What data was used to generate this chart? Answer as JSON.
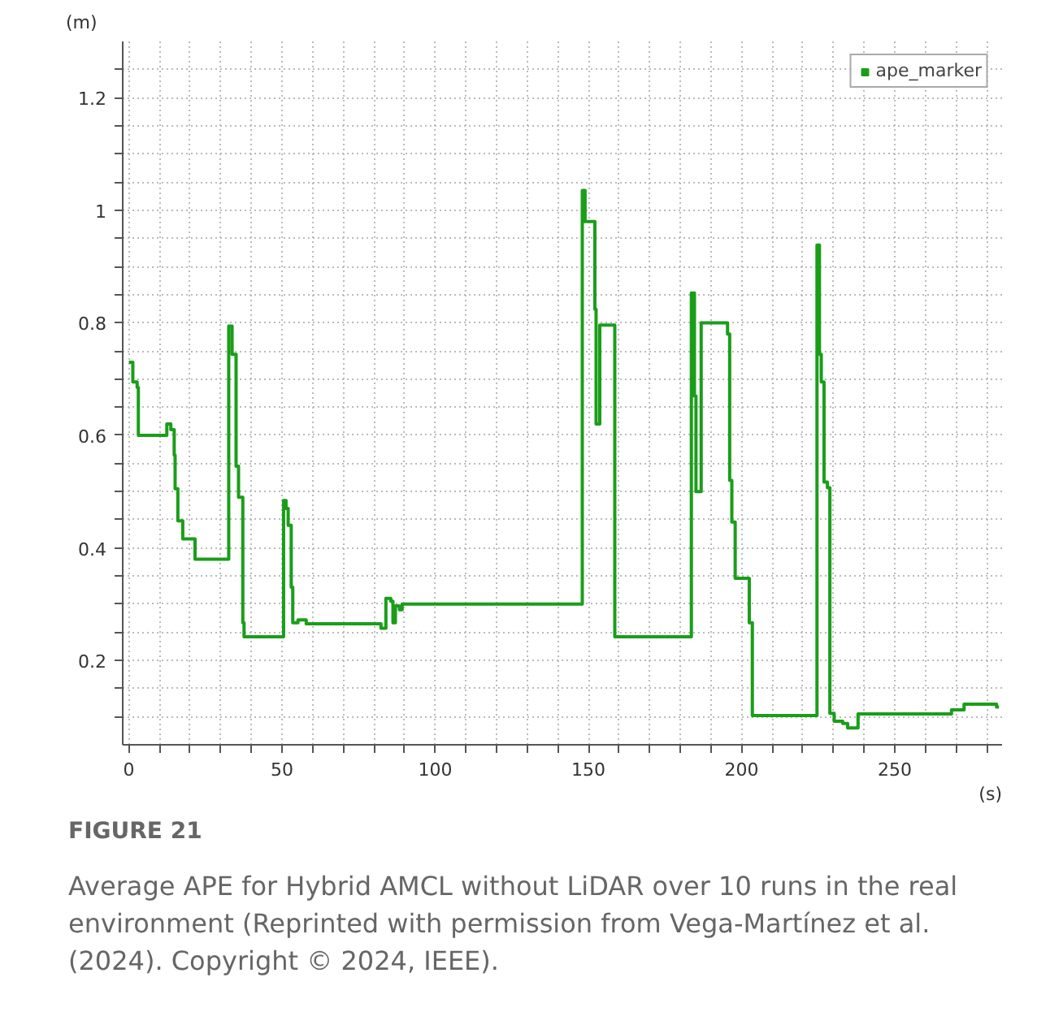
{
  "chart_data": {
    "type": "step",
    "xlabel": "(s)",
    "ylabel": "(m)",
    "xlim": [
      -2,
      285
    ],
    "ylim": [
      0.05,
      1.3
    ],
    "xticks": [
      0,
      {
        "value": 10,
        "label": null
      },
      {
        "value": 20,
        "label": null
      },
      {
        "value": 30,
        "label": null
      },
      {
        "value": 40,
        "label": null
      },
      50,
      {
        "value": 60,
        "label": null
      },
      {
        "value": 70,
        "label": null
      },
      {
        "value": 80,
        "label": null
      },
      {
        "value": 90,
        "label": null
      },
      100,
      {
        "value": 110,
        "label": null
      },
      {
        "value": 120,
        "label": null
      },
      {
        "value": 130,
        "label": null
      },
      {
        "value": 140,
        "label": null
      },
      150,
      {
        "value": 160,
        "label": null
      },
      {
        "value": 170,
        "label": null
      },
      {
        "value": 180,
        "label": null
      },
      {
        "value": 190,
        "label": null
      },
      200,
      {
        "value": 210,
        "label": null
      },
      {
        "value": 220,
        "label": null
      },
      {
        "value": 230,
        "label": null
      },
      {
        "value": 240,
        "label": null
      },
      250,
      {
        "value": 260,
        "label": null
      },
      {
        "value": 270,
        "label": null
      },
      {
        "value": 280,
        "label": null
      }
    ],
    "yticks": [
      {
        "value": 0.1,
        "label": null
      },
      {
        "value": 0.15,
        "label": null
      },
      0.2,
      {
        "value": 0.25,
        "label": null
      },
      {
        "value": 0.3,
        "label": null
      },
      {
        "value": 0.35,
        "label": null
      },
      0.4,
      {
        "value": 0.45,
        "label": null
      },
      {
        "value": 0.5,
        "label": null
      },
      {
        "value": 0.55,
        "label": null
      },
      0.6,
      {
        "value": 0.65,
        "label": null
      },
      {
        "value": 0.7,
        "label": null
      },
      {
        "value": 0.75,
        "label": null
      },
      0.8,
      {
        "value": 0.85,
        "label": null
      },
      {
        "value": 0.9,
        "label": null
      },
      {
        "value": 0.95,
        "label": null
      },
      1,
      {
        "value": 1.05,
        "label": null
      },
      {
        "value": 1.1,
        "label": null
      },
      {
        "value": 1.15,
        "label": null
      },
      1.2,
      {
        "value": 1.25,
        "label": null
      }
    ],
    "grid": true,
    "legend": "top right",
    "x": [
      0,
      1.3,
      2.7,
      3.1,
      12.4,
      13.7,
      14.8,
      15.1,
      16,
      17.6,
      21.6,
      32.6,
      33.7,
      35,
      35.8,
      37.2,
      37.6,
      50.5,
      51.3,
      52,
      53,
      53.5,
      55.2,
      57.9,
      82.3,
      83.9,
      85.5,
      86.2,
      87,
      88.3,
      89.2,
      148,
      148.9,
      152.1,
      152.5,
      153.7,
      158.6,
      183.6,
      184.6,
      185.1,
      186.8,
      195.4,
      196.1,
      196.8,
      197.9,
      202.5,
      203.5,
      224.6,
      225.4,
      226,
      226.9,
      228,
      228.8,
      230.2,
      233,
      234.6,
      238,
      268.5,
      272.6,
      283.2,
      284
    ],
    "series": [
      {
        "name": "ape_marker",
        "color": "#1a9e1a",
        "values": [
          0.73,
          0.695,
          0.685,
          0.6,
          0.62,
          0.61,
          0.565,
          0.505,
          0.448,
          0.416,
          0.38,
          0.794,
          0.744,
          0.545,
          0.49,
          0.267,
          0.242,
          0.484,
          0.47,
          0.44,
          0.33,
          0.267,
          0.272,
          0.265,
          0.257,
          0.31,
          0.305,
          0.267,
          0.297,
          0.29,
          0.3,
          1.035,
          0.98,
          0.824,
          0.62,
          0.796,
          0.242,
          0.853,
          0.67,
          0.5,
          0.8,
          0.78,
          0.52,
          0.446,
          0.346,
          0.267,
          0.102,
          0.938,
          0.744,
          0.695,
          0.517,
          0.507,
          0.106,
          0.092,
          0.088,
          0.08,
          0.105,
          0.112,
          0.122,
          0.117,
          0.117
        ]
      }
    ],
    "annotations": [
      "FIGURE 21",
      "Average APE for Hybrid AMCL without LiDAR over 10 runs in the real environment (Reprinted with permission from Vega-Martínez et al. (2024). Copyright © 2024, IEEE)."
    ]
  }
}
